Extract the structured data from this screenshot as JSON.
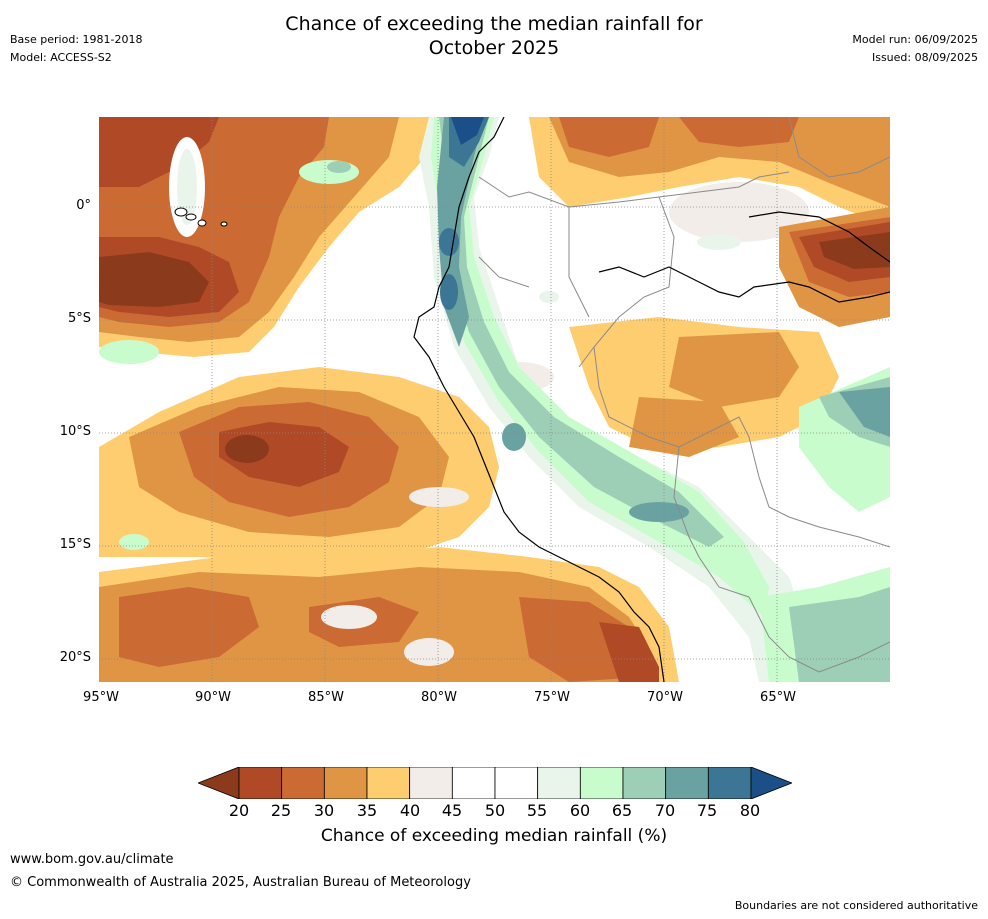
{
  "header": {
    "title_line1": "Chance of exceeding the median rainfall for",
    "title_line2": "October 2025",
    "base_period": "Base period: 1981-2018",
    "model": "Model: ACCESS-S2",
    "model_run": "Model run: 06/09/2025",
    "issued": "Issued: 08/09/2025"
  },
  "map": {
    "lat_labels": [
      "0°",
      "5°S",
      "10°S",
      "15°S",
      "20°S"
    ],
    "lon_labels": [
      "95°W",
      "90°W",
      "85°W",
      "80°W",
      "75°W",
      "70°W",
      "65°W"
    ],
    "extent": {
      "lon_min": -95,
      "lon_max": -60,
      "lat_min": -21,
      "lat_max": 4
    }
  },
  "legend": {
    "ticks": [
      "20",
      "25",
      "30",
      "35",
      "40",
      "45",
      "50",
      "55",
      "60",
      "65",
      "70",
      "75",
      "80"
    ],
    "colors": [
      "#8c3a1c",
      "#b04a26",
      "#cc6a34",
      "#e09545",
      "#fdcd6f",
      "#f2ede8",
      "#ffffff",
      "#ffffff",
      "#e9f5ea",
      "#c8fccc",
      "#9ccfb6",
      "#6aa2a2",
      "#3d7695",
      "#1a4f88"
    ],
    "title": "Chance of exceeding median rainfall (%)"
  },
  "footer": {
    "url": "www.bom.gov.au/climate",
    "copyright": "© Commonwealth of Australia 2025, Australian Bureau of Meteorology",
    "disclaimer": "Boundaries are not considered authoritative"
  }
}
